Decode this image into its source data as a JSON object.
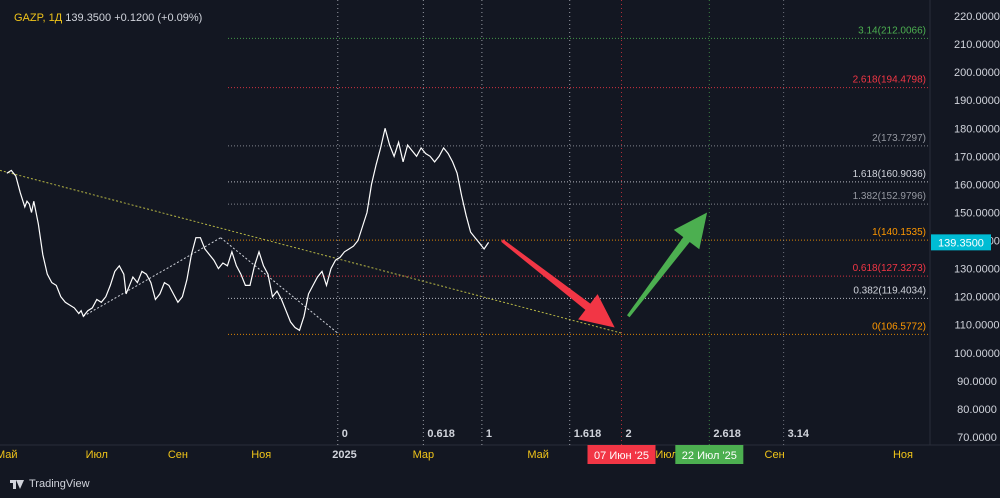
{
  "header": {
    "symbol": "GAZP, 1Д",
    "price": "139.3500",
    "change": "+0.1200 (+0.09%)"
  },
  "branding": {
    "name": "TradingView",
    "icon": "tradingview-logo-icon"
  },
  "chart_data": {
    "type": "line",
    "series": [
      {
        "values": [
          [
            0,
            164
          ],
          [
            2,
            165
          ],
          [
            4,
            163
          ],
          [
            6,
            157
          ],
          [
            8,
            152
          ],
          [
            9,
            154
          ],
          [
            10,
            153
          ],
          [
            11,
            150
          ],
          [
            12,
            154
          ],
          [
            14,
            146
          ],
          [
            16,
            135
          ],
          [
            18,
            128
          ],
          [
            20,
            125
          ],
          [
            22,
            124
          ],
          [
            24,
            120
          ],
          [
            26,
            118
          ],
          [
            28,
            117
          ],
          [
            30,
            116
          ],
          [
            32,
            114
          ],
          [
            33,
            115
          ],
          [
            34,
            113
          ],
          [
            36,
            115
          ],
          [
            38,
            116
          ],
          [
            40,
            119
          ],
          [
            42,
            118
          ],
          [
            44,
            120
          ],
          [
            46,
            124
          ],
          [
            48,
            129
          ],
          [
            50,
            131
          ],
          [
            52,
            128
          ],
          [
            53,
            121
          ],
          [
            54,
            123
          ],
          [
            56,
            127
          ],
          [
            58,
            125
          ],
          [
            60,
            129
          ],
          [
            62,
            128
          ],
          [
            64,
            125
          ],
          [
            66,
            119
          ],
          [
            68,
            121
          ],
          [
            70,
            125
          ],
          [
            72,
            124
          ],
          [
            74,
            121
          ],
          [
            76,
            118
          ],
          [
            78,
            120
          ],
          [
            80,
            126
          ],
          [
            82,
            135
          ],
          [
            84,
            141
          ],
          [
            86,
            141
          ],
          [
            88,
            137
          ],
          [
            90,
            135
          ],
          [
            92,
            133
          ],
          [
            94,
            130
          ],
          [
            96,
            132
          ],
          [
            98,
            131
          ],
          [
            100,
            136
          ],
          [
            102,
            131
          ],
          [
            104,
            128
          ],
          [
            106,
            124
          ],
          [
            108,
            124
          ],
          [
            110,
            131
          ],
          [
            112,
            136
          ],
          [
            114,
            131
          ],
          [
            116,
            128
          ],
          [
            118,
            120
          ],
          [
            120,
            122
          ],
          [
            122,
            119
          ],
          [
            124,
            115
          ],
          [
            126,
            111
          ],
          [
            128,
            109
          ],
          [
            130,
            108
          ],
          [
            132,
            113
          ],
          [
            134,
            121
          ],
          [
            136,
            124
          ],
          [
            138,
            127
          ],
          [
            140,
            129
          ],
          [
            142,
            124
          ],
          [
            144,
            130
          ],
          [
            146,
            133
          ],
          [
            148,
            134
          ],
          [
            150,
            136
          ],
          [
            152,
            137
          ],
          [
            154,
            138
          ],
          [
            156,
            140
          ],
          [
            158,
            145
          ],
          [
            160,
            150
          ],
          [
            162,
            160
          ],
          [
            164,
            167
          ],
          [
            166,
            173
          ],
          [
            168,
            180
          ],
          [
            170,
            174
          ],
          [
            172,
            170
          ],
          [
            174,
            175
          ],
          [
            176,
            168
          ],
          [
            178,
            174
          ],
          [
            180,
            172
          ],
          [
            182,
            170
          ],
          [
            184,
            173
          ],
          [
            186,
            171
          ],
          [
            188,
            170
          ],
          [
            190,
            168
          ],
          [
            192,
            170
          ],
          [
            194,
            173
          ],
          [
            196,
            171
          ],
          [
            198,
            168
          ],
          [
            200,
            164
          ],
          [
            202,
            156
          ],
          [
            204,
            149
          ],
          [
            206,
            143
          ],
          [
            208,
            141
          ],
          [
            210,
            139
          ],
          [
            212,
            137
          ],
          [
            214,
            139.35
          ]
        ],
        "color": "#ffffff"
      }
    ],
    "x_axis_labels": [
      {
        "label": "Май",
        "x": 0
      },
      {
        "label": "Июл",
        "x": 40
      },
      {
        "label": "Сен",
        "x": 76
      },
      {
        "label": "Ноя",
        "x": 113
      },
      {
        "label": "2025",
        "x": 150
      },
      {
        "label": "Мар",
        "x": 185
      },
      {
        "label": "Май",
        "x": 236
      },
      {
        "label": "Июл",
        "x": 293
      },
      {
        "label": "Сен",
        "x": 341
      },
      {
        "label": "Ноя",
        "x": 398
      }
    ],
    "y_axis_ticks": [
      "220.0000",
      "210.0000",
      "200.0000",
      "190.0000",
      "180.0000",
      "170.0000",
      "160.0000",
      "150.0000",
      "140.0000",
      "130.0000",
      "120.0000",
      "110.0000",
      "100.0000",
      "90.0000",
      "80.0000",
      "70.0000"
    ],
    "ylim": [
      70,
      220
    ],
    "xlim": [
      -3,
      410
    ],
    "current_price_label": {
      "value": "139.3500",
      "color": "#00bcd4"
    },
    "fib_levels": [
      {
        "label": "3.14(212.0066)",
        "value": 212.0066,
        "color": "#4caf50"
      },
      {
        "label": "2.618(194.4798)",
        "value": 194.4798,
        "color": "#f23645"
      },
      {
        "label": "2(173.7297)",
        "value": 173.7297,
        "color": "#9598a1"
      },
      {
        "label": "1.618(160.9036)",
        "value": 160.9036,
        "color": "#d1d4dc"
      },
      {
        "label": "1.382(152.9796)",
        "value": 152.9796,
        "color": "#9598a1"
      },
      {
        "label": "1(140.1535)",
        "value": 140.1535,
        "color": "#ff9800"
      },
      {
        "label": "0.618(127.3273)",
        "value": 127.3273,
        "color": "#f23645"
      },
      {
        "label": "0.382(119.4034)",
        "value": 119.4034,
        "color": "#d1d4dc"
      },
      {
        "label": "0(106.5772)",
        "value": 106.5772,
        "color": "#ff9800"
      }
    ],
    "time_fib_lines": [
      {
        "label": "0",
        "x": 147,
        "color": "#d1d4dc"
      },
      {
        "label": "0.618",
        "x": 185,
        "color": "#d1d4dc"
      },
      {
        "label": "1",
        "x": 211,
        "color": "#d1d4dc"
      },
      {
        "label": "1.618",
        "x": 250,
        "color": "#d1d4dc"
      },
      {
        "label": "2",
        "x": 273,
        "color": "#f23645"
      },
      {
        "label": "2.618",
        "x": 312,
        "color": "#4caf50"
      },
      {
        "label": "3.14",
        "x": 345,
        "color": "#9598a1"
      }
    ],
    "date_badges": [
      {
        "label": "07 Июн '25",
        "x": 273,
        "color": "#f23645"
      },
      {
        "label": "22 Июл '25",
        "x": 312,
        "color": "#4caf50"
      }
    ],
    "trendlines": [
      {
        "from": [
          -3,
          165
        ],
        "to": [
          273,
          107
        ],
        "color": "#b5b544",
        "style": "dotted"
      },
      {
        "from": [
          34,
          113
        ],
        "to": [
          95,
          141
        ],
        "color": "#d1d4dc",
        "style": "dotted"
      },
      {
        "from": [
          95,
          141
        ],
        "to": [
          147,
          107
        ],
        "color": "#d1d4dc",
        "style": "dotted"
      }
    ],
    "arrows": [
      {
        "from": [
          220,
          140
        ],
        "to": [
          270,
          109
        ],
        "color": "#f23645"
      },
      {
        "from": [
          276,
          113
        ],
        "to": [
          311,
          150
        ],
        "color": "#4caf50"
      }
    ],
    "colors": {
      "background": "#131722",
      "axis_text": "#d1d4dc",
      "month_label": "#f0c419"
    }
  }
}
